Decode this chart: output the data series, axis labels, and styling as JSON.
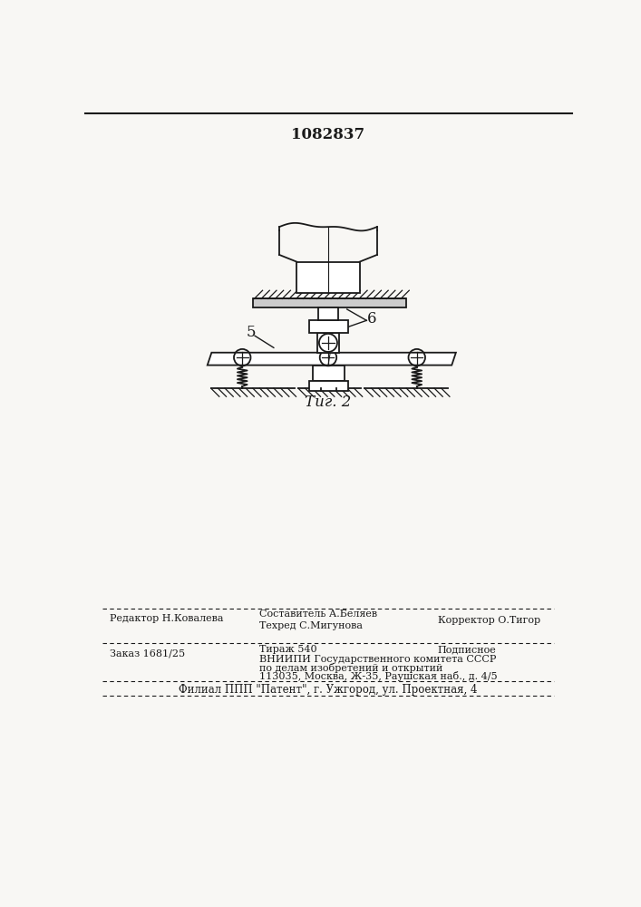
{
  "patent_number": "1082837",
  "fig_label": "Τиг. 2",
  "label_5": "5",
  "label_6": "6",
  "bg_color": "#f8f7f4",
  "text_color": "#1a1a1a",
  "footer_line1_left": "Редактор Н.Ковалева",
  "footer_line1_center_top": "Составитель А.Беляев",
  "footer_line1_center_bot": "Техред С.Мигунова",
  "footer_line1_right": "Корректор О.Тигор",
  "footer_line2_left": "Заказ 1681/25",
  "footer_line2_center": "Тираж 540",
  "footer_line2_right": "Подписное",
  "footer_line3": "ВНИИПИ Государственного комитета СССР",
  "footer_line4": "по делам изобретений и открытий",
  "footer_line5": "113035, Москва, Ж-35, Раушская наб., д. 4/5",
  "footer_bottom": "Филиал ППП \"Патент\", г. Ужгород, ул. Проектная, 4"
}
